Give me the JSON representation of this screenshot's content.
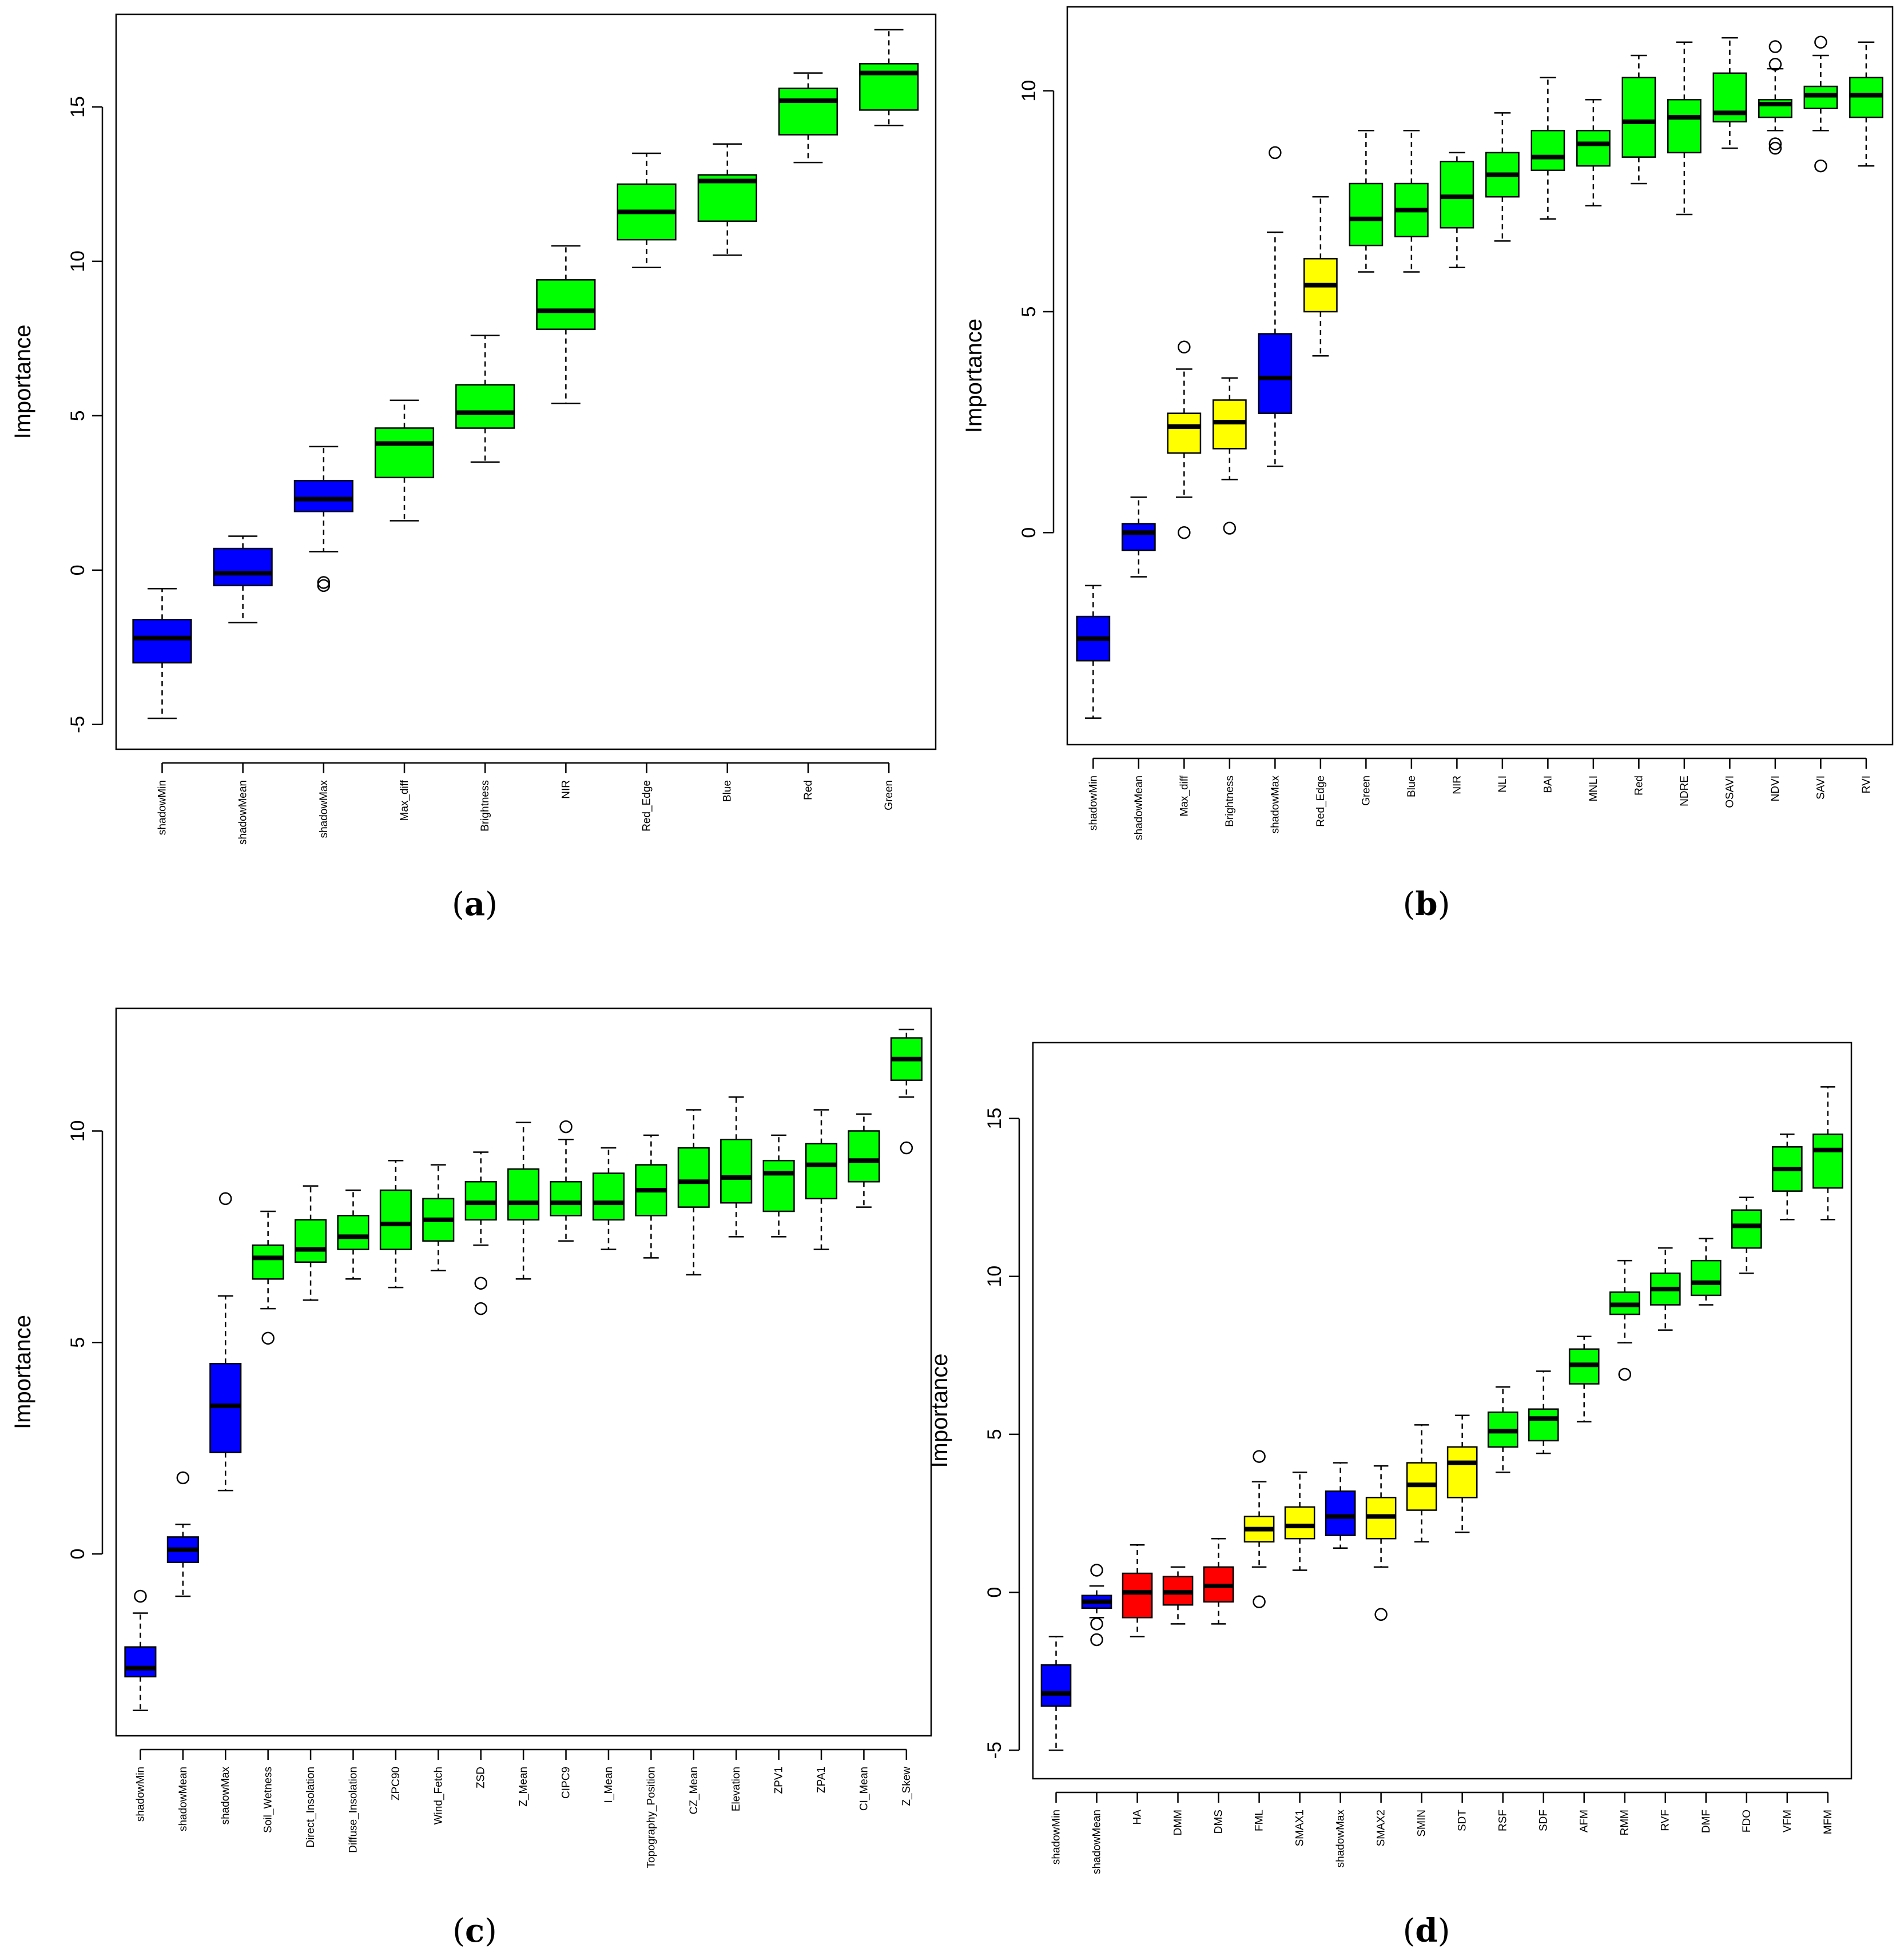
{
  "colors": {
    "blue": "#0000ff",
    "green": "#00ff00",
    "yellow": "#ffff00",
    "red": "#ff0000"
  },
  "chart_data": [
    {
      "type": "boxplot",
      "panel": "a",
      "caption": "a",
      "ylabel": "Importance",
      "ylim": [
        -5.8,
        18.0
      ],
      "yticks": [
        -5,
        0,
        5,
        10,
        15
      ],
      "categories": [
        "shadowMin",
        "shadowMean",
        "shadowMax",
        "Max_diff",
        "Brightness",
        "NIR",
        "Red_Edge",
        "Blue",
        "Red",
        "Green"
      ],
      "colors": [
        "blue",
        "blue",
        "blue",
        "green",
        "green",
        "green",
        "green",
        "green",
        "green",
        "green"
      ],
      "boxes": [
        {
          "min": -4.8,
          "q1": -3.0,
          "median": -2.2,
          "q3": -1.6,
          "max": -0.6,
          "outliers": []
        },
        {
          "min": -1.7,
          "q1": -0.5,
          "median": -0.1,
          "q3": 0.7,
          "max": 1.1,
          "outliers": []
        },
        {
          "min": 0.6,
          "q1": 1.9,
          "median": 2.3,
          "q3": 2.9,
          "max": 4.0,
          "outliers": [
            -0.4,
            -0.5
          ]
        },
        {
          "min": 1.6,
          "q1": 3.0,
          "median": 4.1,
          "q3": 4.6,
          "max": 5.5,
          "outliers": []
        },
        {
          "min": 3.5,
          "q1": 4.6,
          "median": 5.1,
          "q3": 6.0,
          "max": 7.6,
          "outliers": []
        },
        {
          "min": 5.4,
          "q1": 7.8,
          "median": 8.4,
          "q3": 9.4,
          "max": 10.5,
          "outliers": []
        },
        {
          "min": 9.8,
          "q1": 10.7,
          "median": 11.6,
          "q3": 12.5,
          "max": 13.5,
          "outliers": []
        },
        {
          "min": 10.2,
          "q1": 11.3,
          "median": 12.6,
          "q3": 12.8,
          "max": 13.8,
          "outliers": []
        },
        {
          "min": 13.2,
          "q1": 14.1,
          "median": 15.2,
          "q3": 15.6,
          "max": 16.1,
          "outliers": []
        },
        {
          "min": 14.4,
          "q1": 14.9,
          "median": 16.1,
          "q3": 16.4,
          "max": 17.5,
          "outliers": []
        }
      ]
    },
    {
      "type": "boxplot",
      "panel": "b",
      "caption": "b",
      "ylabel": "Importance",
      "ylim": [
        -4.8,
        11.9
      ],
      "yticks": [
        0,
        5,
        10
      ],
      "categories": [
        "shadowMin",
        "shadowMean",
        "Max_diff",
        "Brightness",
        "shadowMax",
        "Red_Edge",
        "Green",
        "Blue",
        "NIR",
        "NLI",
        "BAI",
        "MNLI",
        "Red",
        "NDRE",
        "OSAVI",
        "NDVI",
        "SAVI",
        "RVI"
      ],
      "colors": [
        "blue",
        "blue",
        "yellow",
        "yellow",
        "blue",
        "yellow",
        "green",
        "green",
        "green",
        "green",
        "green",
        "green",
        "green",
        "green",
        "green",
        "green",
        "green",
        "green"
      ],
      "boxes": [
        {
          "min": -4.2,
          "q1": -2.9,
          "median": -2.4,
          "q3": -1.9,
          "max": -1.2,
          "outliers": []
        },
        {
          "min": -1.0,
          "q1": -0.4,
          "median": 0.0,
          "q3": 0.2,
          "max": 0.8,
          "outliers": []
        },
        {
          "min": 0.8,
          "q1": 1.8,
          "median": 2.4,
          "q3": 2.7,
          "max": 3.7,
          "outliers": [
            4.2,
            0.0
          ]
        },
        {
          "min": 1.2,
          "q1": 1.9,
          "median": 2.5,
          "q3": 3.0,
          "max": 3.5,
          "outliers": [
            0.1
          ]
        },
        {
          "min": 1.5,
          "q1": 2.7,
          "median": 3.5,
          "q3": 4.5,
          "max": 6.8,
          "outliers": [
            8.6
          ]
        },
        {
          "min": 4.0,
          "q1": 5.0,
          "median": 5.6,
          "q3": 6.2,
          "max": 7.6,
          "outliers": []
        },
        {
          "min": 5.9,
          "q1": 6.5,
          "median": 7.1,
          "q3": 7.9,
          "max": 9.1,
          "outliers": []
        },
        {
          "min": 5.9,
          "q1": 6.7,
          "median": 7.3,
          "q3": 7.9,
          "max": 9.1,
          "outliers": []
        },
        {
          "min": 6.0,
          "q1": 6.9,
          "median": 7.6,
          "q3": 8.4,
          "max": 8.6,
          "outliers": []
        },
        {
          "min": 6.6,
          "q1": 7.6,
          "median": 8.1,
          "q3": 8.6,
          "max": 9.5,
          "outliers": []
        },
        {
          "min": 7.1,
          "q1": 8.2,
          "median": 8.5,
          "q3": 9.1,
          "max": 10.3,
          "outliers": []
        },
        {
          "min": 7.4,
          "q1": 8.3,
          "median": 8.8,
          "q3": 9.1,
          "max": 9.8,
          "outliers": []
        },
        {
          "min": 7.9,
          "q1": 8.5,
          "median": 9.3,
          "q3": 10.3,
          "max": 10.8,
          "outliers": []
        },
        {
          "min": 7.2,
          "q1": 8.6,
          "median": 9.4,
          "q3": 9.8,
          "max": 11.1,
          "outliers": []
        },
        {
          "min": 8.7,
          "q1": 9.3,
          "median": 9.5,
          "q3": 10.4,
          "max": 11.2,
          "outliers": []
        },
        {
          "min": 9.1,
          "q1": 9.4,
          "median": 9.7,
          "q3": 9.8,
          "max": 10.5,
          "outliers": [
            11.0,
            10.6,
            8.8,
            8.7
          ]
        },
        {
          "min": 9.1,
          "q1": 9.6,
          "median": 9.9,
          "q3": 10.1,
          "max": 10.8,
          "outliers": [
            11.1,
            8.3
          ]
        },
        {
          "min": 8.3,
          "q1": 9.4,
          "median": 9.9,
          "q3": 10.3,
          "max": 11.1,
          "outliers": []
        }
      ]
    },
    {
      "type": "boxplot",
      "panel": "c",
      "caption": "c",
      "ylabel": "Importance",
      "ylim": [
        -4.3,
        12.9
      ],
      "yticks": [
        0,
        5,
        10
      ],
      "categories": [
        "shadowMin",
        "shadowMean",
        "shadowMax",
        "Soil_Wetness",
        "Direct_Insolation",
        "Diffuse_Insolation",
        "ZPC90",
        "Wind_Fetch",
        "ZSD",
        "Z_Mean",
        "CIPC9",
        "I_Mean",
        "Topography_Position",
        "CZ_Mean",
        "Elevation",
        "ZPV1",
        "ZPA1",
        "CI_Mean",
        "Z_Skew"
      ],
      "colors": [
        "blue",
        "blue",
        "blue",
        "green",
        "green",
        "green",
        "green",
        "green",
        "green",
        "green",
        "green",
        "green",
        "green",
        "green",
        "green",
        "green",
        "green",
        "green",
        "green"
      ],
      "boxes": [
        {
          "min": -3.7,
          "q1": -2.9,
          "median": -2.7,
          "q3": -2.2,
          "max": -1.4,
          "outliers": [
            -1.0
          ]
        },
        {
          "min": -1.0,
          "q1": -0.2,
          "median": 0.1,
          "q3": 0.4,
          "max": 0.7,
          "outliers": [
            1.8
          ]
        },
        {
          "min": 1.5,
          "q1": 2.4,
          "median": 3.5,
          "q3": 4.5,
          "max": 6.1,
          "outliers": [
            8.4
          ]
        },
        {
          "min": 5.8,
          "q1": 6.5,
          "median": 7.0,
          "q3": 7.3,
          "max": 8.1,
          "outliers": [
            5.1
          ]
        },
        {
          "min": 6.0,
          "q1": 6.9,
          "median": 7.2,
          "q3": 7.9,
          "max": 8.7,
          "outliers": []
        },
        {
          "min": 6.5,
          "q1": 7.2,
          "median": 7.5,
          "q3": 8.0,
          "max": 8.6,
          "outliers": []
        },
        {
          "min": 6.3,
          "q1": 7.2,
          "median": 7.8,
          "q3": 8.6,
          "max": 9.3,
          "outliers": []
        },
        {
          "min": 6.7,
          "q1": 7.4,
          "median": 7.9,
          "q3": 8.4,
          "max": 9.2,
          "outliers": []
        },
        {
          "min": 7.3,
          "q1": 7.9,
          "median": 8.3,
          "q3": 8.8,
          "max": 9.5,
          "outliers": [
            6.4,
            5.8
          ]
        },
        {
          "min": 6.5,
          "q1": 7.9,
          "median": 8.3,
          "q3": 9.1,
          "max": 10.2,
          "outliers": []
        },
        {
          "min": 7.4,
          "q1": 8.0,
          "median": 8.3,
          "q3": 8.8,
          "max": 9.8,
          "outliers": [
            10.1
          ]
        },
        {
          "min": 7.2,
          "q1": 7.9,
          "median": 8.3,
          "q3": 9.0,
          "max": 9.6,
          "outliers": []
        },
        {
          "min": 7.0,
          "q1": 8.0,
          "median": 8.6,
          "q3": 9.2,
          "max": 9.9,
          "outliers": []
        },
        {
          "min": 6.6,
          "q1": 8.2,
          "median": 8.8,
          "q3": 9.6,
          "max": 10.5,
          "outliers": []
        },
        {
          "min": 7.5,
          "q1": 8.3,
          "median": 8.9,
          "q3": 9.8,
          "max": 10.8,
          "outliers": []
        },
        {
          "min": 7.5,
          "q1": 8.1,
          "median": 9.0,
          "q3": 9.3,
          "max": 9.9,
          "outliers": []
        },
        {
          "min": 7.2,
          "q1": 8.4,
          "median": 9.2,
          "q3": 9.7,
          "max": 10.5,
          "outliers": []
        },
        {
          "min": 8.2,
          "q1": 8.8,
          "median": 9.3,
          "q3": 10.0,
          "max": 10.4,
          "outliers": []
        },
        {
          "min": 10.8,
          "q1": 11.2,
          "median": 11.7,
          "q3": 12.2,
          "max": 12.4,
          "outliers": [
            9.6
          ]
        }
      ]
    },
    {
      "type": "boxplot",
      "panel": "d",
      "caption": "d",
      "ylabel": "Importance",
      "ylim": [
        -5.9,
        17.4
      ],
      "yticks": [
        -5,
        0,
        5,
        10,
        15
      ],
      "categories": [
        "shadowMin",
        "shadowMean",
        "HA",
        "DMM",
        "DMS",
        "FML",
        "SMAX1",
        "shadowMax",
        "SMAX2",
        "SMIN",
        "SDT",
        "RSF",
        "SDF",
        "AFM",
        "RMM",
        "RVF",
        "DMF",
        "FDO",
        "VFM",
        "MFM"
      ],
      "colors": [
        "blue",
        "blue",
        "red",
        "red",
        "red",
        "yellow",
        "yellow",
        "blue",
        "yellow",
        "yellow",
        "yellow",
        "green",
        "green",
        "green",
        "green",
        "green",
        "green",
        "green",
        "green",
        "green"
      ],
      "boxes": [
        {
          "min": -5.0,
          "q1": -3.6,
          "median": -3.2,
          "q3": -2.3,
          "max": -1.4,
          "outliers": []
        },
        {
          "min": -0.8,
          "q1": -0.5,
          "median": -0.3,
          "q3": -0.1,
          "max": 0.2,
          "outliers": [
            0.7,
            -1.0,
            -1.5
          ]
        },
        {
          "min": -1.4,
          "q1": -0.8,
          "median": 0.0,
          "q3": 0.6,
          "max": 1.5,
          "outliers": []
        },
        {
          "min": -1.0,
          "q1": -0.4,
          "median": 0.0,
          "q3": 0.5,
          "max": 0.8,
          "outliers": []
        },
        {
          "min": -1.0,
          "q1": -0.3,
          "median": 0.2,
          "q3": 0.8,
          "max": 1.7,
          "outliers": []
        },
        {
          "min": 0.8,
          "q1": 1.6,
          "median": 2.0,
          "q3": 2.4,
          "max": 3.5,
          "outliers": [
            4.3,
            -0.3
          ]
        },
        {
          "min": 0.7,
          "q1": 1.7,
          "median": 2.1,
          "q3": 2.7,
          "max": 3.8,
          "outliers": []
        },
        {
          "min": 1.4,
          "q1": 1.8,
          "median": 2.4,
          "q3": 3.2,
          "max": 4.1,
          "outliers": []
        },
        {
          "min": 0.8,
          "q1": 1.7,
          "median": 2.4,
          "q3": 3.0,
          "max": 4.0,
          "outliers": [
            -0.7
          ]
        },
        {
          "min": 1.6,
          "q1": 2.6,
          "median": 3.4,
          "q3": 4.1,
          "max": 5.3,
          "outliers": []
        },
        {
          "min": 1.9,
          "q1": 3.0,
          "median": 4.1,
          "q3": 4.6,
          "max": 5.6,
          "outliers": []
        },
        {
          "min": 3.8,
          "q1": 4.6,
          "median": 5.1,
          "q3": 5.7,
          "max": 6.5,
          "outliers": []
        },
        {
          "min": 4.4,
          "q1": 4.8,
          "median": 5.5,
          "q3": 5.8,
          "max": 7.0,
          "outliers": []
        },
        {
          "min": 5.4,
          "q1": 6.6,
          "median": 7.2,
          "q3": 7.7,
          "max": 8.1,
          "outliers": []
        },
        {
          "min": 7.9,
          "q1": 8.8,
          "median": 9.1,
          "q3": 9.5,
          "max": 10.5,
          "outliers": [
            6.9
          ]
        },
        {
          "min": 8.3,
          "q1": 9.1,
          "median": 9.6,
          "q3": 10.1,
          "max": 10.9,
          "outliers": []
        },
        {
          "min": 9.1,
          "q1": 9.4,
          "median": 9.8,
          "q3": 10.5,
          "max": 11.2,
          "outliers": []
        },
        {
          "min": 10.1,
          "q1": 10.9,
          "median": 11.6,
          "q3": 12.1,
          "max": 12.5,
          "outliers": []
        },
        {
          "min": 11.8,
          "q1": 12.7,
          "median": 13.4,
          "q3": 14.1,
          "max": 14.5,
          "outliers": []
        },
        {
          "min": 11.8,
          "q1": 12.8,
          "median": 14.0,
          "q3": 14.5,
          "max": 16.0,
          "outliers": []
        }
      ]
    }
  ]
}
